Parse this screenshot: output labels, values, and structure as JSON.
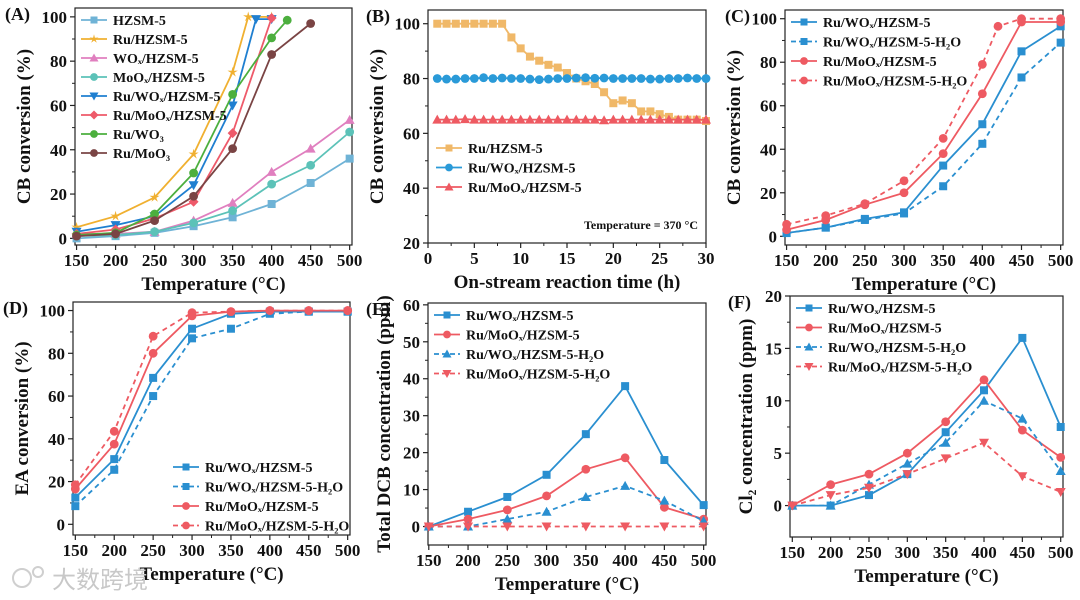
{
  "watermark": "大数跨境",
  "chart_data": [
    {
      "panel": "(A)",
      "type": "line",
      "xlabel": "Temperature (°C)",
      "ylabel": "CB conversion (%)",
      "xlim": [
        148,
        503
      ],
      "ylim": [
        -3,
        104
      ],
      "xticks": [
        150,
        200,
        250,
        300,
        350,
        400,
        450,
        500
      ],
      "yticks": [
        0,
        20,
        40,
        60,
        80,
        100
      ],
      "legend": "top-left",
      "series": [
        {
          "name": "HZSM-5",
          "color": "#6fb3d6",
          "marker": "square",
          "dash": false,
          "x": [
            150,
            200,
            250,
            300,
            350,
            400,
            450,
            500
          ],
          "y": [
            0,
            1,
            2.5,
            5.5,
            9.5,
            15.5,
            25,
            36
          ]
        },
        {
          "name": "Ru/HZSM-5",
          "color": "#f0b030",
          "marker": "star",
          "dash": false,
          "x": [
            150,
            200,
            250,
            300,
            350,
            370,
            400
          ],
          "y": [
            5,
            10,
            18.5,
            38,
            75,
            100,
            100
          ]
        },
        {
          "name": "WOₓ/HZSM-5",
          "color": "#e07fbf",
          "marker": "triangle",
          "dash": false,
          "x": [
            150,
            200,
            250,
            300,
            350,
            400,
            450,
            500
          ],
          "y": [
            2,
            2,
            3,
            8,
            16,
            30,
            40.5,
            53.5
          ]
        },
        {
          "name": "MoOₓ/HZSM-5",
          "color": "#5cc2b8",
          "marker": "circle",
          "dash": false,
          "x": [
            150,
            200,
            250,
            300,
            350,
            400,
            450,
            500
          ],
          "y": [
            1,
            1.5,
            3,
            7,
            12.5,
            24.5,
            33,
            48
          ]
        },
        {
          "name": "Ru/WOₓ/HZSM-5",
          "color": "#1f7fd0",
          "marker": "down-triangle",
          "dash": false,
          "x": [
            150,
            200,
            250,
            300,
            350,
            380,
            400
          ],
          "y": [
            3,
            6,
            10,
            24,
            60,
            99,
            99
          ]
        },
        {
          "name": "Ru/MoOₓ/HZSM-5",
          "color": "#ee5a6a",
          "marker": "diamond",
          "dash": false,
          "x": [
            150,
            200,
            250,
            300,
            350,
            400
          ],
          "y": [
            2,
            4,
            9,
            16.5,
            47.5,
            99.5
          ]
        },
        {
          "name": "Ru/WO₃",
          "color": "#4caf3e",
          "marker": "circle",
          "dash": false,
          "x": [
            150,
            200,
            250,
            300,
            350,
            400,
            420
          ],
          "y": [
            1.5,
            2.5,
            11,
            29.5,
            65,
            90.5,
            98.5
          ]
        },
        {
          "name": "Ru/MoO₃",
          "color": "#7a4444",
          "marker": "circle",
          "dash": false,
          "x": [
            150,
            200,
            250,
            300,
            350,
            400,
            450
          ],
          "y": [
            1,
            2,
            8,
            19,
            40.5,
            83,
            97
          ]
        }
      ]
    },
    {
      "panel": "(B)",
      "type": "line",
      "xlabel": "On-stream reaction time (h)",
      "ylabel": "CB conversion (%)",
      "xlim": [
        0,
        30
      ],
      "ylim": [
        20,
        105
      ],
      "xticks": [
        0,
        5,
        10,
        15,
        20,
        25,
        30
      ],
      "yticks": [
        20,
        40,
        60,
        80,
        100
      ],
      "legend": "middle-left",
      "annotation": "Temperature = 370 °C",
      "series": [
        {
          "name": "Ru/HZSM-5",
          "color": "#f0b868",
          "marker": "square",
          "dash": false,
          "x": [
            1,
            2,
            3,
            4,
            5,
            6,
            7,
            8,
            9,
            10,
            11,
            12,
            13,
            14,
            15,
            16,
            17,
            18,
            19,
            20,
            21,
            22,
            23,
            24,
            25,
            26,
            27,
            28,
            29,
            30
          ],
          "y": [
            100,
            100,
            100,
            100,
            100,
            100,
            100,
            100,
            95,
            91,
            88,
            86.5,
            85,
            84,
            82,
            80,
            79,
            78,
            75,
            71,
            72,
            71,
            68,
            68,
            67,
            66,
            65,
            65,
            65,
            64.5
          ]
        },
        {
          "name": "Ru/WOₓ/HZSM-5",
          "color": "#2a9ad8",
          "marker": "circle",
          "dash": false,
          "x": [
            1,
            2,
            3,
            4,
            5,
            6,
            7,
            8,
            9,
            10,
            11,
            12,
            13,
            14,
            15,
            16,
            17,
            18,
            19,
            20,
            21,
            22,
            23,
            24,
            25,
            26,
            27,
            28,
            29,
            30
          ],
          "y": [
            80,
            79.8,
            79.8,
            80,
            80,
            80.3,
            80,
            80.2,
            80,
            80,
            79.8,
            79.6,
            79.8,
            80,
            80,
            80.2,
            80.3,
            80.1,
            80.2,
            80,
            80,
            80,
            80,
            79.8,
            79.8,
            80,
            80,
            80.2,
            80,
            80
          ]
        },
        {
          "name": "Ru/MoOₓ/HZSM-5",
          "color": "#ee5a62",
          "marker": "triangle",
          "dash": false,
          "x": [
            1,
            2,
            3,
            4,
            5,
            6,
            7,
            8,
            9,
            10,
            11,
            12,
            13,
            14,
            15,
            16,
            17,
            18,
            19,
            20,
            21,
            22,
            23,
            24,
            25,
            26,
            27,
            28,
            29,
            30
          ],
          "y": [
            65,
            65,
            65,
            65.2,
            65,
            65,
            65,
            65,
            65,
            65,
            65,
            65,
            65,
            65,
            65,
            65,
            65,
            65,
            64.8,
            65,
            65,
            65,
            65,
            65,
            65,
            65,
            65,
            65,
            65,
            65
          ]
        }
      ]
    },
    {
      "panel": "(C)",
      "type": "line",
      "xlabel": "Temperature (°C)",
      "ylabel": "CB conversion (%)",
      "xlim": [
        148,
        503
      ],
      "ylim": [
        -4,
        104
      ],
      "xticks": [
        150,
        200,
        250,
        300,
        350,
        400,
        450,
        500
      ],
      "yticks": [
        0,
        20,
        40,
        60,
        80,
        100
      ],
      "legend": "top-left",
      "series": [
        {
          "name": "Ru/WOₓ/HZSM-5",
          "color": "#2a8fd0",
          "marker": "square",
          "dash": false,
          "x": [
            150,
            200,
            250,
            300,
            350,
            400,
            450,
            500
          ],
          "y": [
            1.5,
            4,
            8,
            11,
            32.5,
            51.5,
            85,
            96.5
          ]
        },
        {
          "name": "Ru/WOₓ/HZSM-5-H₂O",
          "color": "#2a8fd0",
          "marker": "square",
          "dash": true,
          "x": [
            150,
            200,
            250,
            300,
            350,
            400,
            450,
            500
          ],
          "y": [
            1.5,
            4,
            7.5,
            10.5,
            23,
            42.5,
            73,
            89
          ]
        },
        {
          "name": "Ru/MoOₓ/HZSM-5",
          "color": "#ee5a62",
          "marker": "circle",
          "dash": false,
          "x": [
            150,
            200,
            250,
            300,
            350,
            400,
            450,
            500
          ],
          "y": [
            3,
            7.5,
            14.5,
            20,
            38,
            65.5,
            98.5,
            98.5
          ]
        },
        {
          "name": "Ru/MoOₓ/HZSM-5-H₂O",
          "color": "#ee5a62",
          "marker": "circle",
          "dash": true,
          "x": [
            150,
            200,
            250,
            300,
            350,
            400,
            420,
            450,
            500
          ],
          "y": [
            5.5,
            9.5,
            15,
            25.5,
            45,
            79,
            96.5,
            100,
            100
          ]
        }
      ]
    },
    {
      "panel": "(D)",
      "type": "line",
      "xlabel": "Temperature (°C)",
      "ylabel": "EA conversion (%)",
      "xlim": [
        147,
        503
      ],
      "ylim": [
        -5,
        104
      ],
      "xticks": [
        150,
        200,
        250,
        300,
        350,
        400,
        450,
        500
      ],
      "yticks": [
        0,
        20,
        40,
        60,
        80,
        100
      ],
      "legend": "bottom-right",
      "series": [
        {
          "name": "Ru/WOₓ/HZSM-5",
          "color": "#2a8fd0",
          "marker": "square",
          "dash": false,
          "x": [
            150,
            200,
            250,
            300,
            350,
            400,
            450,
            500
          ],
          "y": [
            12.5,
            30.5,
            68.5,
            91.5,
            98.5,
            99.5,
            99.5,
            99.5
          ]
        },
        {
          "name": "Ru/WOₓ/HZSM-5-H₂O",
          "color": "#2a8fd0",
          "marker": "square",
          "dash": true,
          "x": [
            150,
            200,
            250,
            300,
            350,
            400,
            450,
            500
          ],
          "y": [
            8.5,
            25.5,
            60,
            87,
            91.5,
            98.5,
            99.5,
            99.5
          ]
        },
        {
          "name": "Ru/MoOₓ/HZSM-5",
          "color": "#ee5a62",
          "marker": "circle",
          "dash": false,
          "x": [
            150,
            200,
            250,
            300,
            350,
            400,
            450,
            500
          ],
          "y": [
            16.5,
            37.5,
            80,
            97.5,
            99.5,
            100,
            100,
            100
          ]
        },
        {
          "name": "Ru/MoOₓ/HZSM-5-H₂O",
          "color": "#ee5a62",
          "marker": "circle",
          "dash": true,
          "x": [
            150,
            200,
            250,
            300,
            350,
            400,
            450,
            500
          ],
          "y": [
            18.5,
            43.5,
            88,
            99,
            99.5,
            100,
            100,
            100
          ]
        }
      ]
    },
    {
      "panel": "(E)",
      "type": "line",
      "xlabel": "Temperature (°C)",
      "ylabel": "Total DCB concentration (ppm)",
      "xlim": [
        149,
        503
      ],
      "ylim": [
        -5,
        60.5
      ],
      "xticks": [
        150,
        200,
        250,
        300,
        350,
        400,
        450,
        500
      ],
      "yticks": [
        0,
        10,
        20,
        30,
        40,
        50,
        60
      ],
      "legend": "top-left",
      "series": [
        {
          "name": "Ru/WOₓ/HZSM-5",
          "color": "#2a8fd0",
          "marker": "square",
          "dash": false,
          "x": [
            150,
            200,
            250,
            300,
            350,
            400,
            450,
            500
          ],
          "y": [
            0,
            4,
            8,
            14,
            25,
            38,
            18,
            5.8
          ]
        },
        {
          "name": "Ru/MoOₓ/HZSM-5",
          "color": "#ee5a62",
          "marker": "circle",
          "dash": false,
          "x": [
            150,
            200,
            250,
            300,
            350,
            400,
            450,
            500
          ],
          "y": [
            0,
            2,
            4.5,
            8.3,
            15.5,
            18.6,
            5.2,
            2
          ]
        },
        {
          "name": "Ru/WOₓ/HZSM-5-H₂O",
          "color": "#2a8fd0",
          "marker": "triangle",
          "dash": true,
          "x": [
            150,
            200,
            250,
            300,
            350,
            400,
            450,
            500
          ],
          "y": [
            0,
            0,
            2,
            4,
            8,
            11,
            7,
            1.5
          ]
        },
        {
          "name": "Ru/MoOₓ/HZSM-5-H₂O",
          "color": "#ee5a62",
          "marker": "down-triangle",
          "dash": true,
          "x": [
            150,
            200,
            250,
            300,
            350,
            400,
            450,
            500
          ],
          "y": [
            0,
            0,
            0,
            0,
            0,
            0,
            0,
            0
          ]
        }
      ]
    },
    {
      "panel": "(F)",
      "type": "line",
      "xlabel": "Temperature (°C)",
      "ylabel": "Cl₂ concentration (ppm)",
      "xlim": [
        147,
        503
      ],
      "ylim": [
        -3,
        20
      ],
      "xticks": [
        150,
        200,
        250,
        300,
        350,
        400,
        450,
        500
      ],
      "yticks": [
        0,
        5,
        10,
        15,
        20
      ],
      "legend": "top-left",
      "series": [
        {
          "name": "Ru/WOₓ/HZSM-5",
          "color": "#2a8fd0",
          "marker": "square",
          "dash": false,
          "x": [
            150,
            200,
            250,
            300,
            350,
            400,
            450,
            500
          ],
          "y": [
            0,
            0,
            1,
            3,
            7,
            11,
            16,
            7.5
          ]
        },
        {
          "name": "Ru/MoOₓ/HZSM-5",
          "color": "#ee5a62",
          "marker": "circle",
          "dash": false,
          "x": [
            150,
            200,
            250,
            300,
            350,
            400,
            450,
            500
          ],
          "y": [
            0,
            2,
            3,
            5,
            8,
            12,
            7.2,
            4.6
          ]
        },
        {
          "name": "Ru/WOₓ/HZSM-5-H₂O",
          "color": "#2a8fd0",
          "marker": "triangle",
          "dash": true,
          "x": [
            150,
            200,
            250,
            300,
            350,
            400,
            450,
            500
          ],
          "y": [
            0,
            0,
            2,
            4,
            6,
            10,
            8.3,
            3.3
          ]
        },
        {
          "name": "Ru/MoOₓ/HZSM-5-H₂O",
          "color": "#ee5a62",
          "marker": "down-triangle",
          "dash": true,
          "x": [
            150,
            200,
            250,
            300,
            350,
            400,
            450,
            500
          ],
          "y": [
            0,
            1,
            1.7,
            3,
            4.5,
            6,
            2.8,
            1.3
          ]
        }
      ]
    }
  ]
}
